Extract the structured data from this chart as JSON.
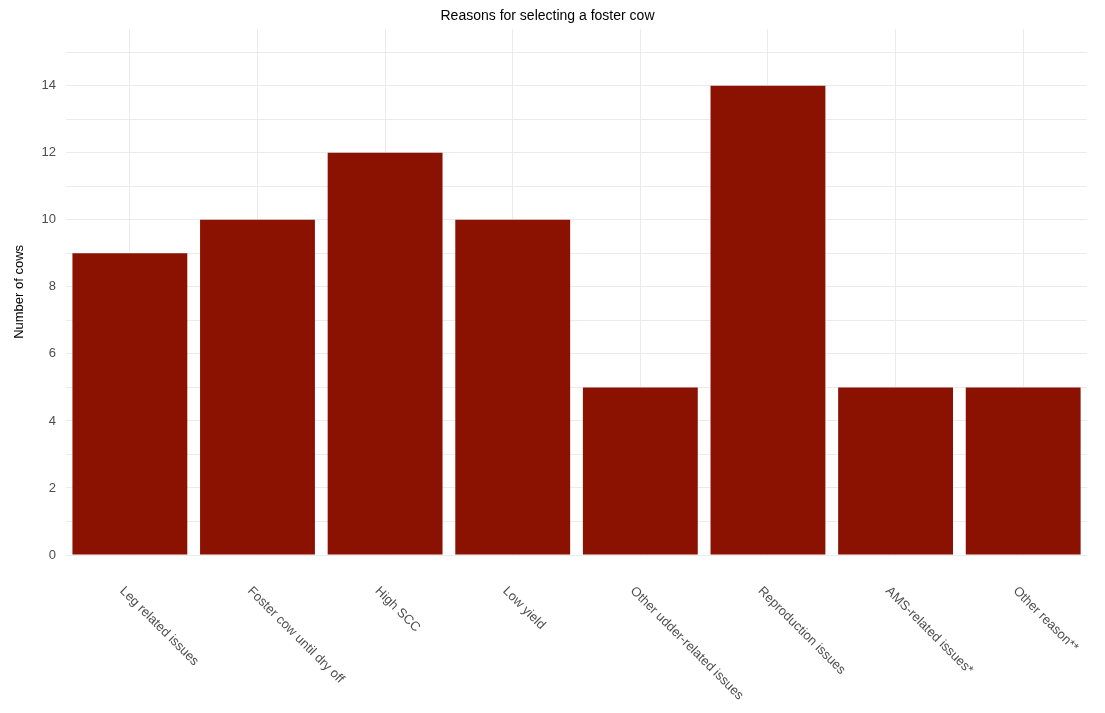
{
  "chart_data": {
    "type": "bar",
    "title": "Reasons for selecting a foster cow",
    "ylabel": "Number of cows",
    "categories": [
      "Leg related issues",
      "Foster cow until dry off",
      "High SCC",
      "Low yield",
      "Other udder-related issues",
      "Reproduction issues",
      "AMS-related issues*",
      "Other reason**"
    ],
    "values": [
      9,
      10,
      12,
      10,
      5,
      14,
      5,
      5
    ],
    "color": "#8b1100",
    "ylim": [
      0,
      15.7
    ],
    "yticks": [
      0,
      {
        "value": 1,
        "label": null
      },
      2,
      {
        "value": 3,
        "label": null
      },
      4,
      {
        "value": 5,
        "label": null
      },
      6,
      {
        "value": 7,
        "label": null
      },
      8,
      {
        "value": 9,
        "label": null
      },
      10,
      {
        "value": 11,
        "label": null
      },
      12,
      {
        "value": 13,
        "label": null
      },
      14,
      {
        "value": 15,
        "label": null
      }
    ],
    "grid": true
  }
}
